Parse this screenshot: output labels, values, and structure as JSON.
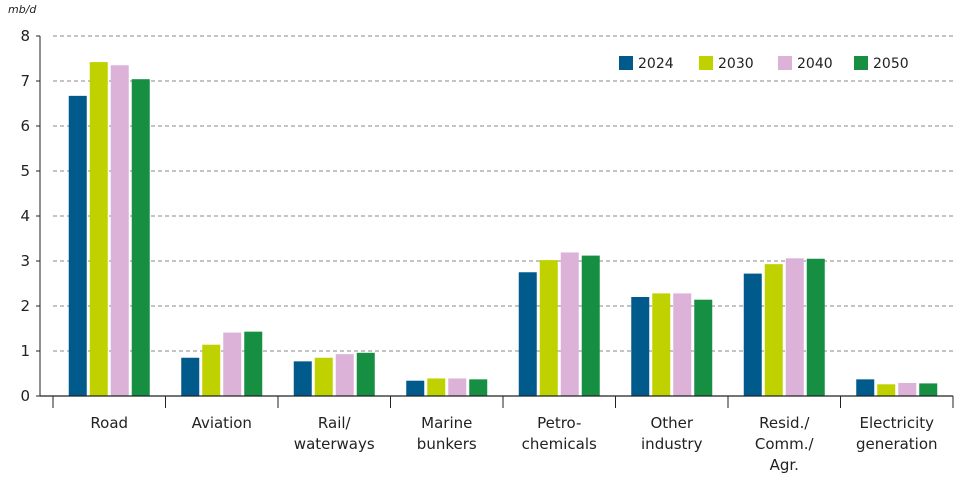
{
  "chart_data": {
    "type": "bar",
    "unit_label": "mb/d",
    "categories": [
      [
        "Road"
      ],
      [
        "Aviation"
      ],
      [
        "Rail/",
        "waterways"
      ],
      [
        "Marine",
        "bunkers"
      ],
      [
        "Petro-",
        "chemicals"
      ],
      [
        "Other",
        "industry"
      ],
      [
        "Resid./",
        "Comm./",
        "Agr."
      ],
      [
        "Electricity",
        "generation"
      ]
    ],
    "series": [
      {
        "name": "2024",
        "color": "#005a8c",
        "values": [
          6.67,
          0.85,
          0.77,
          0.34,
          2.75,
          2.2,
          2.72,
          0.37
        ]
      },
      {
        "name": "2030",
        "color": "#bfd200",
        "values": [
          7.42,
          1.14,
          0.85,
          0.39,
          3.02,
          2.28,
          2.93,
          0.26
        ]
      },
      {
        "name": "2040",
        "color": "#dcb2d8",
        "values": [
          7.35,
          1.41,
          0.93,
          0.39,
          3.19,
          2.28,
          3.06,
          0.29
        ]
      },
      {
        "name": "2050",
        "color": "#168f43",
        "values": [
          7.04,
          1.43,
          0.96,
          0.37,
          3.12,
          2.14,
          3.05,
          0.28
        ]
      }
    ],
    "yticks": [
      "0",
      "1",
      "2",
      "3",
      "4",
      "5",
      "6",
      "7",
      "8"
    ],
    "ylim": [
      0,
      8
    ],
    "grid": true,
    "legend_position": "top-right"
  }
}
